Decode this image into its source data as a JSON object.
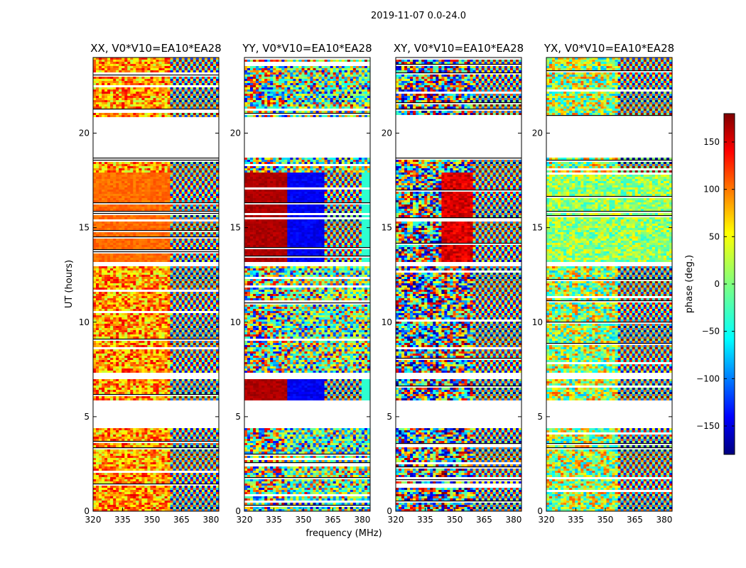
{
  "figure_title": "2019-11-07 0.0-24.0",
  "chart_data": {
    "type": "heatmap",
    "xlabel": "frequency (MHz)",
    "ylabel": "UT (hours)",
    "xlim": [
      320,
      384
    ],
    "ylim": [
      0,
      24
    ],
    "xticks": [
      "320",
      "335",
      "350",
      "365",
      "380"
    ],
    "yticks": [
      "0",
      "5",
      "10",
      "15",
      "20"
    ],
    "panels": [
      {
        "title": "XX, V0*V10=EA10*EA28",
        "pattern": "xx"
      },
      {
        "title": "YY, V0*V10=EA10*EA28",
        "pattern": "yy"
      },
      {
        "title": "XY, V0*V10=EA10*EA28",
        "pattern": "xy"
      },
      {
        "title": "YX, V0*V10=EA10*EA28",
        "pattern": "yx"
      }
    ],
    "colorbar": {
      "label": "phase (deg.)",
      "range": [
        -180,
        180
      ],
      "ticks": [
        "150",
        "100",
        "50",
        "0",
        "−50",
        "−100",
        "−150"
      ],
      "colormap": "jet"
    },
    "data_gaps_hours": [
      [
        4.5,
        5.9
      ],
      [
        7.0,
        7.4
      ],
      [
        18.8,
        20.9
      ],
      [
        13.0,
        13.2
      ]
    ]
  }
}
